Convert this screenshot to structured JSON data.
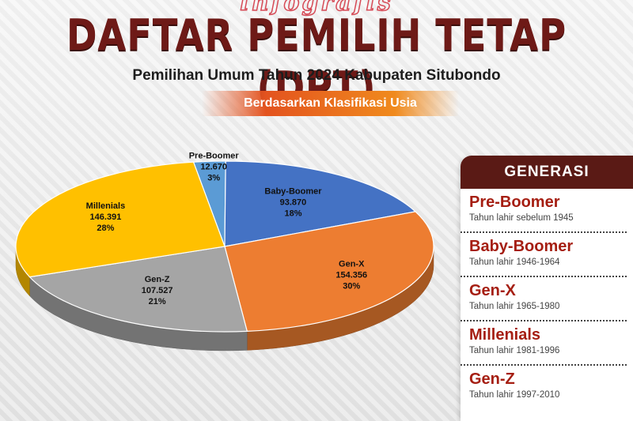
{
  "header": {
    "kicker": "infografis",
    "title": "DAFTAR PEMILIH TETAP (DPT)",
    "subtitle": "Pemilihan Umum Tahun 2024 Kabupaten Situbondo",
    "tagline": "Berdasarkan Klasifikasi Usia"
  },
  "legend": {
    "header": "GENERASI",
    "items": [
      {
        "name": "Pre-Boomer",
        "years": "Tahun lahir sebelum 1945"
      },
      {
        "name": "Baby-Boomer",
        "years": "Tahun lahir 1946-1964"
      },
      {
        "name": "Gen-X",
        "years": "Tahun lahir 1965-1980"
      },
      {
        "name": "Millenials",
        "years": "Tahun lahir 1981-1996"
      },
      {
        "name": "Gen-Z",
        "years": "Tahun lahir 1997-2010"
      }
    ]
  },
  "chart_data": {
    "type": "pie",
    "title": "",
    "slices": [
      {
        "name": "Pre-Boomer",
        "value": 12670,
        "value_label": "12.670",
        "percent_label": "3%",
        "color": "#5b9bd5"
      },
      {
        "name": "Baby-Boomer",
        "value": 93870,
        "value_label": "93.870",
        "percent_label": "18%",
        "color": "#4472c4"
      },
      {
        "name": "Gen-X",
        "value": 154356,
        "value_label": "154.356",
        "percent_label": "30%",
        "color": "#ed7d31"
      },
      {
        "name": "Gen-Z",
        "value": 107527,
        "value_label": "107.527",
        "percent_label": "21%",
        "color": "#a5a5a5"
      },
      {
        "name": "Millenials",
        "value": 146391,
        "value_label": "146.391",
        "percent_label": "28%",
        "color": "#ffc000"
      }
    ]
  }
}
